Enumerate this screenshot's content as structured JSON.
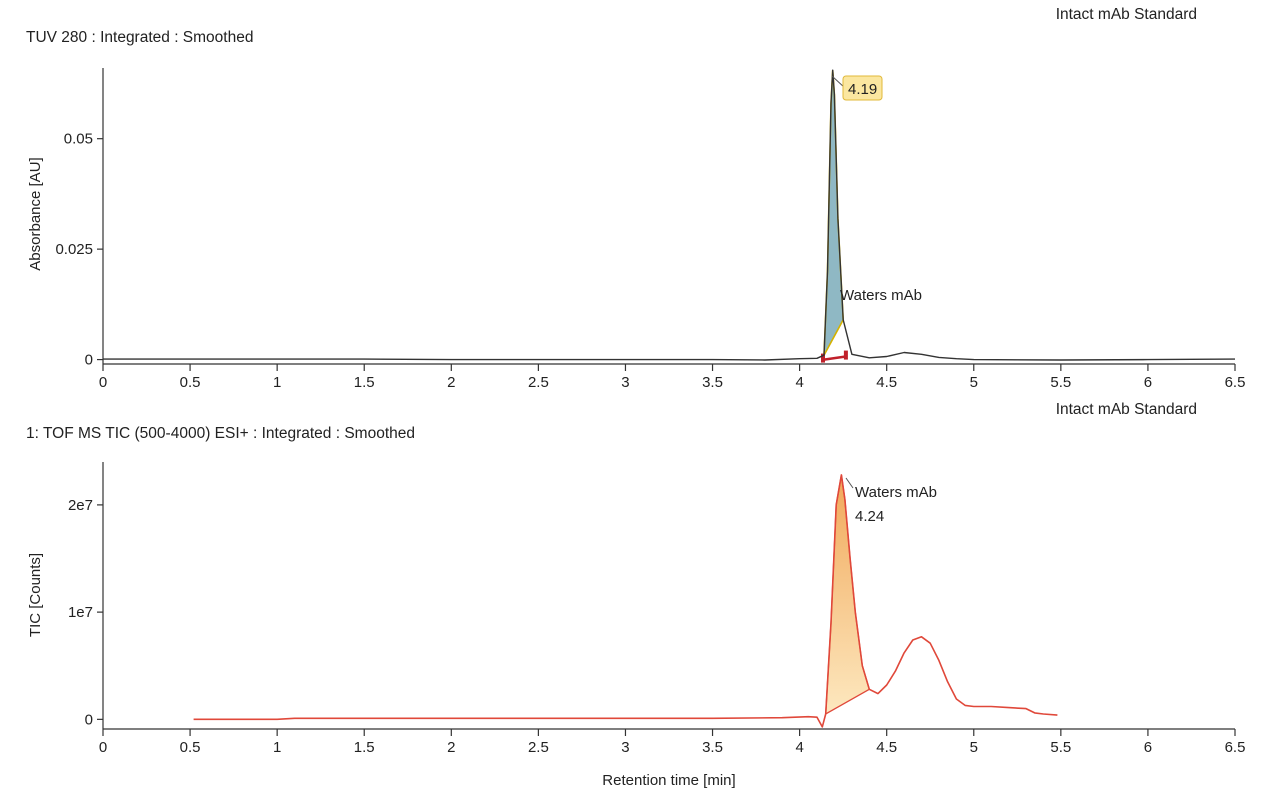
{
  "chart_data": [
    {
      "type": "line",
      "sample_name": "Intact mAb Standard",
      "title": "TUV 280 : Integrated : Smoothed",
      "xlabel": "",
      "ylabel": "Absorbance [AU]",
      "xlim": [
        0,
        6.5
      ],
      "ylim": [
        -0.001,
        0.066
      ],
      "xticks": [
        0,
        0.5,
        1,
        1.5,
        2,
        2.5,
        3,
        3.5,
        4,
        4.5,
        5,
        5.5,
        6,
        6.5
      ],
      "xtick_labels": [
        "0",
        "0.5",
        "1",
        "1.5",
        "2",
        "2.5",
        "3",
        "3.5",
        "4",
        "4.5",
        "5",
        "5.5",
        "6",
        "6.5"
      ],
      "yticks": [
        0,
        0.025,
        0.05
      ],
      "ytick_labels": [
        "0",
        "0.025",
        "0.05"
      ],
      "grid": false,
      "series": [
        {
          "color": "#333333",
          "x": [
            0,
            0.5,
            1,
            1.5,
            2,
            2.5,
            3,
            3.5,
            3.8,
            4.0,
            4.1,
            4.14,
            4.16,
            4.18,
            4.19,
            4.2,
            4.22,
            4.25,
            4.3,
            4.4,
            4.5,
            4.6,
            4.7,
            4.8,
            4.9,
            5.0,
            5.5,
            6.0,
            6.5
          ],
          "y": [
            0.0001,
            0.0001,
            0.0001,
            0.0001,
            0.0,
            0.0,
            0.0,
            0.0,
            -0.0001,
            0.0002,
            0.0003,
            0.001,
            0.02,
            0.058,
            0.0655,
            0.06,
            0.032,
            0.009,
            0.0012,
            0.0004,
            0.0007,
            0.0016,
            0.0012,
            0.0005,
            0.0002,
            0.0,
            -0.0001,
            0.0,
            0.0001
          ]
        }
      ],
      "integrated_peak": {
        "name": "Waters mAb",
        "retention_time": "4.19",
        "x_start": 4.14,
        "x_end": 4.26,
        "fill_color": "#8fb8c4",
        "outline_color": "#d4b200",
        "marker_color": "#c0202a"
      }
    },
    {
      "type": "line",
      "sample_name": "Intact mAb Standard",
      "title": "1: TOF MS TIC (500-4000) ESI+ : Integrated : Smoothed",
      "xlabel": "Retention time [min]",
      "ylabel": "TIC [Counts]",
      "xlim": [
        0,
        6.5
      ],
      "ylim": [
        -900000,
        24000000
      ],
      "xticks": [
        0,
        0.5,
        1,
        1.5,
        2,
        2.5,
        3,
        3.5,
        4,
        4.5,
        5,
        5.5,
        6,
        6.5
      ],
      "xtick_labels": [
        "0",
        "0.5",
        "1",
        "1.5",
        "2",
        "2.5",
        "3",
        "3.5",
        "4",
        "4.5",
        "5",
        "5.5",
        "6",
        "6.5"
      ],
      "yticks": [
        0,
        10000000,
        20000000
      ],
      "ytick_labels": [
        "0",
        "1e7",
        "2e7"
      ],
      "grid": false,
      "series": [
        {
          "color": "#e0483a",
          "x": [
            0.52,
            1.0,
            1.1,
            1.5,
            2,
            2.5,
            3,
            3.5,
            3.9,
            4.05,
            4.1,
            4.13,
            4.15,
            4.18,
            4.21,
            4.24,
            4.26,
            4.29,
            4.32,
            4.36,
            4.4,
            4.45,
            4.5,
            4.55,
            4.6,
            4.65,
            4.7,
            4.75,
            4.8,
            4.85,
            4.9,
            4.95,
            5.0,
            5.1,
            5.2,
            5.3,
            5.35,
            5.4,
            5.48
          ],
          "y": [
            0,
            0,
            100000,
            100000,
            100000,
            100000,
            100000,
            100000,
            150000,
            250000,
            200000,
            -700000,
            500000,
            9000000,
            20000000,
            22800000,
            20500000,
            15000000,
            10000000,
            5000000,
            2800000,
            2400000,
            3200000,
            4500000,
            6200000,
            7400000,
            7700000,
            7100000,
            5500000,
            3500000,
            1900000,
            1300000,
            1200000,
            1200000,
            1100000,
            1000000,
            600000,
            500000,
            400000
          ]
        }
      ],
      "integrated_peak": {
        "name": "Waters mAb",
        "retention_time": "4.24",
        "x_start": 4.14,
        "x_end": 4.4,
        "fill_top_color": "#f1a85a",
        "fill_bottom_color": "#fde8bf",
        "outline_color": "#e0483a"
      }
    }
  ]
}
